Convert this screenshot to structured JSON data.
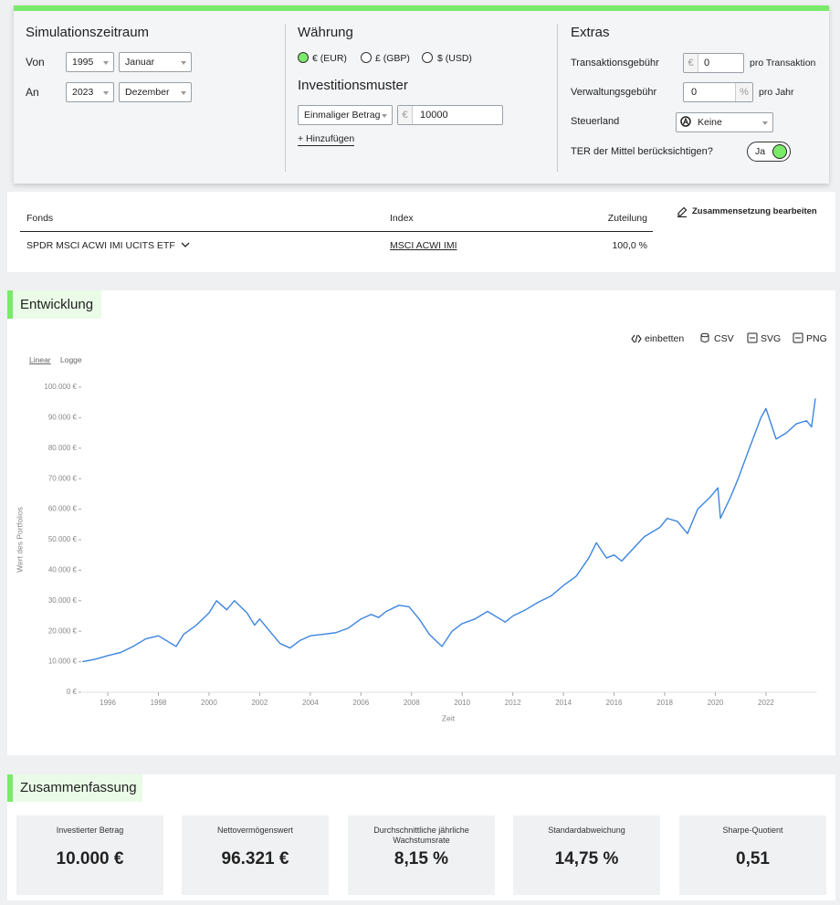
{
  "header": {
    "period": {
      "title": "Simulationszeitraum",
      "from_label": "Von",
      "from_year": "1995",
      "from_month": "Januar",
      "to_label": "An",
      "to_year": "2023",
      "to_month": "Dezember"
    },
    "currency": {
      "title": "Währung",
      "options": [
        "€ (EUR)",
        "£ (GBP)",
        "$ (USD)"
      ]
    },
    "pattern": {
      "title": "Investitionsmuster",
      "type": "Einmaliger Betrag",
      "currency_symbol": "€",
      "amount": "10000",
      "add": "+ Hinzufügen"
    },
    "extras": {
      "title": "Extras",
      "transaction_fee_label": "Transaktionsgebühr",
      "transaction_fee_unit": "€",
      "transaction_fee": "0",
      "transaction_fee_suffix": "pro Transaktion",
      "management_fee_label": "Verwaltungsgebühr",
      "management_fee": "0",
      "management_fee_unit": "%",
      "management_fee_suffix": "pro Jahr",
      "tax_country_label": "Steuerland",
      "tax_country": "Keine",
      "ter_label": "TER der Mittel berücksichtigen?",
      "ter_toggle": "Ja"
    }
  },
  "funds": {
    "headers": [
      "Fonds",
      "Index",
      "Zuteilung"
    ],
    "rows": [
      [
        "SPDR MSCI ACWI IMI UCITS ETF",
        "MSCI ACWI IMI",
        "100,0 %"
      ]
    ],
    "edit": "Zusammensetzung bearbeiten"
  },
  "development": {
    "title": "Entwicklung",
    "exports": [
      "einbetten",
      "CSV",
      "SVG",
      "PNG"
    ],
    "scales": [
      "Linear",
      "Logge"
    ]
  },
  "chart_data": {
    "type": "line",
    "x_label": "Zeit",
    "y_label": "Wert des Portfolios",
    "color": "#3d85e0",
    "x": [
      1995,
      1995.5,
      1996,
      1996.5,
      1997,
      1997.5,
      1998,
      1998.7,
      1999,
      1999.5,
      2000,
      2000.3,
      2000.7,
      2001,
      2001.5,
      2001.8,
      2002,
      2002.5,
      2002.8,
      2003.2,
      2003.6,
      2004,
      2004.5,
      2005,
      2005.5,
      2006,
      2006.4,
      2006.7,
      2007,
      2007.5,
      2007.9,
      2008.3,
      2008.7,
      2009.2,
      2009.6,
      2010,
      2010.5,
      2011,
      2011.7,
      2012,
      2012.5,
      2013,
      2013.5,
      2014,
      2014.5,
      2015,
      2015.3,
      2015.7,
      2016,
      2016.3,
      2016.8,
      2017.2,
      2017.8,
      2018.1,
      2018.5,
      2018.9,
      2019.3,
      2019.8,
      2020.1,
      2020.2,
      2020.6,
      2020.9,
      2021.3,
      2021.8,
      2022,
      2022.4,
      2022.8,
      2023.2,
      2023.6,
      2023.8,
      2023.95
    ],
    "series": [
      {
        "name": "SPDR MSCI ACWI IMI UCITS ETF",
        "color": "#3d85e0",
        "values": [
          10000,
          10800,
          12000,
          13000,
          15000,
          17500,
          18500,
          15000,
          19000,
          22000,
          26000,
          30000,
          27000,
          30000,
          26000,
          22000,
          24000,
          19000,
          16000,
          14500,
          17000,
          18500,
          19000,
          19500,
          21000,
          24000,
          25500,
          24500,
          26500,
          28500,
          28000,
          24000,
          19000,
          15000,
          20000,
          22500,
          24000,
          26500,
          23000,
          25000,
          27000,
          29500,
          31500,
          35000,
          38000,
          44000,
          49000,
          44000,
          45000,
          43000,
          47500,
          51000,
          54000,
          57000,
          56000,
          52000,
          60000,
          64000,
          67000,
          57000,
          64000,
          70000,
          79000,
          90000,
          93000,
          83000,
          85000,
          88000,
          89000,
          87000,
          96321
        ]
      }
    ],
    "xlim": [
      1995,
      2024
    ],
    "ylim": [
      0,
      100000
    ],
    "xticks": [
      1996,
      1998,
      2000,
      2002,
      2004,
      2006,
      2008,
      2010,
      2012,
      2014,
      2016,
      2018,
      2020,
      2022
    ],
    "yticks": [
      {
        "value": 0,
        "label": "0 €"
      },
      {
        "value": 10000,
        "label": "10.000 €"
      },
      {
        "value": 20000,
        "label": "20.000 €"
      },
      {
        "value": 30000,
        "label": "30.000 €"
      },
      {
        "value": 40000,
        "label": "40.000 €"
      },
      {
        "value": 50000,
        "label": "50.000 €"
      },
      {
        "value": 60000,
        "label": "60.000 €"
      },
      {
        "value": 70000,
        "label": "70.000 €"
      },
      {
        "value": 80000,
        "label": "80.000 €"
      },
      {
        "value": 90000,
        "label": "90.000 €"
      },
      {
        "value": 100000,
        "label": "100.000 €"
      }
    ],
    "grid": false,
    "log_scale": false
  },
  "summary": {
    "title": "Zusammenfassung",
    "cards": [
      {
        "label": "Investierter Betrag",
        "value": "10.000 €"
      },
      {
        "label": "Nettovermögenswert",
        "value": "96.321 €"
      },
      {
        "label": "Durchschnittliche jährliche Wachstumsrate",
        "value": "8,15 %"
      },
      {
        "label": "Standardabweichung",
        "value": "14,75 %"
      },
      {
        "label": "Sharpe-Quotient",
        "value": "0,51"
      }
    ]
  }
}
